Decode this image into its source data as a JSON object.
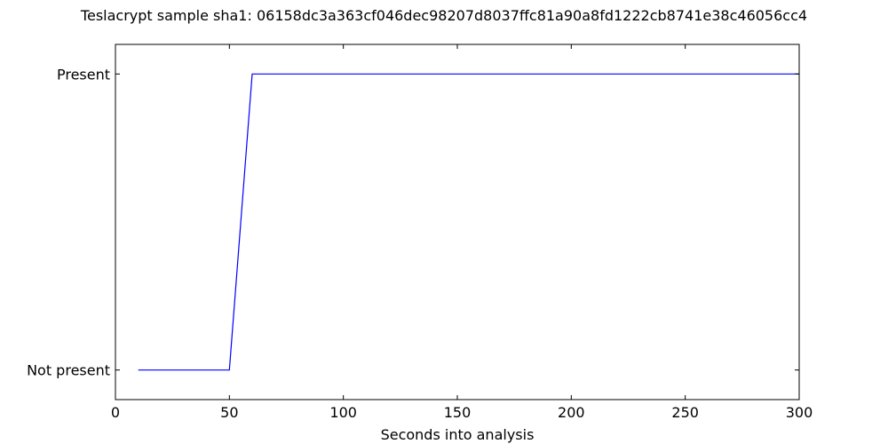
{
  "chart_data": {
    "type": "line",
    "title": "Teslacrypt sample sha1: 06158dc3a363cf046dec98207d8037ffc81a90a8fd1222cb8741e38c46056cc4",
    "xlabel": "Seconds into analysis",
    "ylabel": "",
    "xlim": [
      0,
      300
    ],
    "ylim": [
      -0.1,
      1.1
    ],
    "x_ticks": [
      0,
      50,
      100,
      150,
      200,
      250,
      300
    ],
    "y_ticks": [
      {
        "value": 0,
        "label": "Not present"
      },
      {
        "value": 1,
        "label": "Present"
      }
    ],
    "grid": false,
    "series": [
      {
        "color": "#0000ff",
        "x": [
          10,
          50,
          60,
          300
        ],
        "y": [
          0,
          0,
          1,
          1
        ]
      }
    ]
  }
}
